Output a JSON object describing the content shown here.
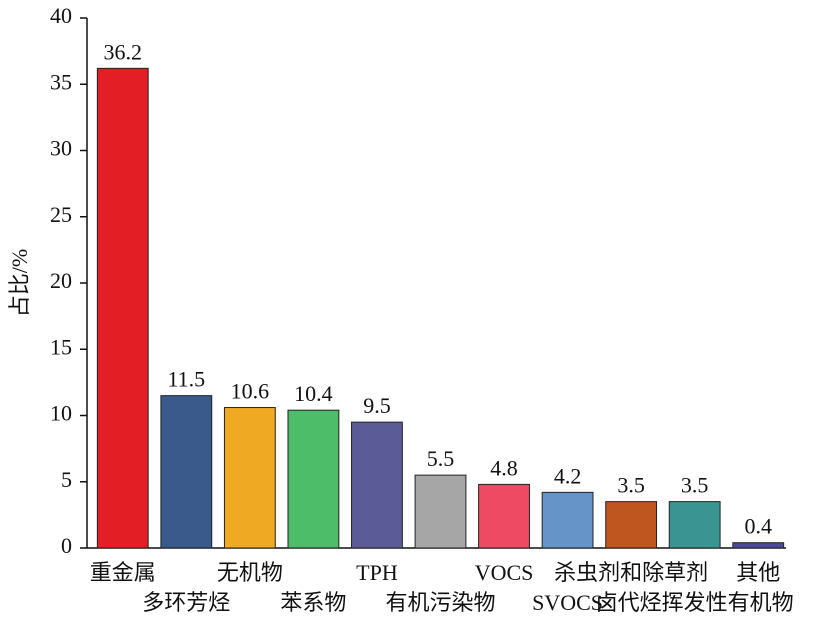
{
  "chart_data": {
    "type": "bar",
    "y_label": "占比/%",
    "categories": [
      "重金属",
      "多环芳烃",
      "无机物",
      "苯系物",
      "TPH",
      "有机污染物",
      "VOCS",
      "SVOCS",
      "杀虫剂和除草剂",
      "卤代烃挥发性有机物",
      "其他"
    ],
    "values": [
      36.2,
      11.5,
      10.6,
      10.4,
      9.5,
      5.5,
      4.8,
      4.2,
      3.5,
      3.5,
      0.4
    ],
    "colors": [
      "#e31e24",
      "#3a5a8c",
      "#f0a923",
      "#4dbd6a",
      "#5b5b98",
      "#a6a6a6",
      "#ee4a64",
      "#6694c8",
      "#c0561f",
      "#3a9592",
      "#4a4a9a"
    ],
    "ylim": [
      0,
      40
    ],
    "yticks": [
      0,
      5,
      10,
      15,
      20,
      25,
      30,
      35,
      40
    ],
    "grid": false
  }
}
